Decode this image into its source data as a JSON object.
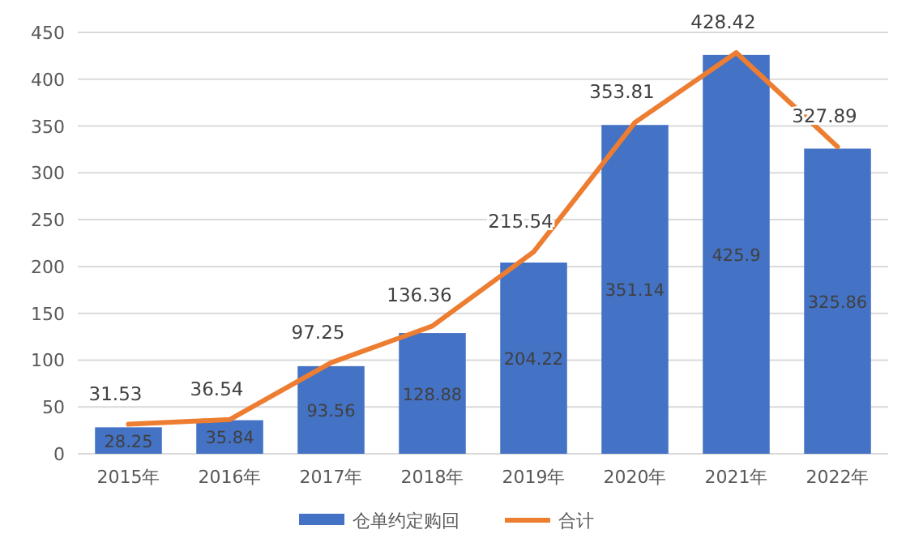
{
  "chart_data": {
    "type": "bar",
    "categories": [
      "2015年",
      "2016年",
      "2017年",
      "2018年",
      "2019年",
      "2020年",
      "2021年",
      "2022年"
    ],
    "series": [
      {
        "name": "仓单约定购回",
        "color": "#4472c4",
        "values": [
          28.25,
          35.84,
          93.56,
          128.88,
          204.22,
          351.14,
          425.9,
          325.86
        ]
      },
      {
        "name": "合计",
        "type": "line",
        "color": "#ed7d31",
        "values": [
          31.53,
          36.54,
          97.25,
          136.36,
          215.54,
          353.81,
          428.42,
          327.89
        ]
      }
    ],
    "ylim": [
      0,
      450
    ],
    "yticks": [
      0,
      50,
      100,
      150,
      200,
      250,
      300,
      350,
      400,
      450
    ],
    "grid": "y",
    "legend": "bottom",
    "data_labels": true
  }
}
